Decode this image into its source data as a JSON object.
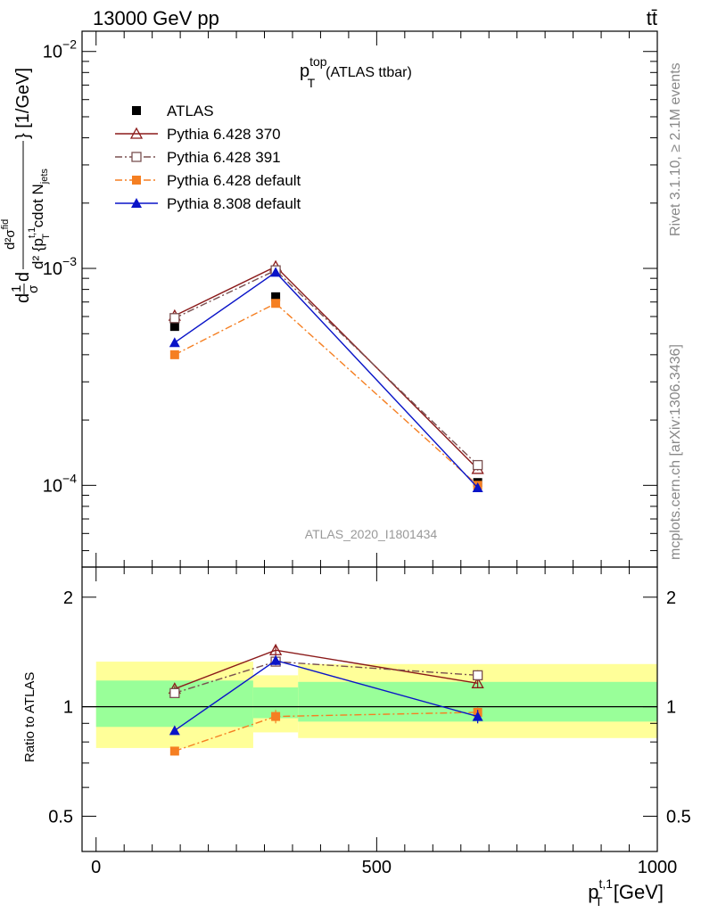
{
  "header": {
    "left": "13000 GeV pp",
    "right": "tt̄"
  },
  "side_labels": {
    "rivet": "Rivet 3.1.10, ≥ 2.1M events",
    "mcplots": "mcplots.cern.ch [arXiv:1306.3436]"
  },
  "chart_data": [
    {
      "type": "line",
      "panel": "main",
      "title_main": "p",
      "title_sup": "top",
      "title_sub": "T",
      "title_tail": "(ATLAS ttbar)",
      "watermark": "ATLAS_2020_I1801434",
      "ylabel": "d²σⁿᵈ ... d² {p_T^{t,1} cdot N_jets} [1/GeV]",
      "ylabel_parts": {
        "frac1_num": "1",
        "frac1_den": "σ",
        "d": "d",
        "frac2_num": "d²σ",
        "frac2_sup": "fid",
        "frac2_den_a": "d² {p",
        "frac2_den_sup": "t,1",
        "frac2_den_sub": "T",
        "frac2_den_b": " cdot N",
        "frac2_den_sub2": "jets",
        "unit": "} [1/GeV]"
      },
      "xlim": [
        -25,
        1000
      ],
      "ylim": [
        4.2e-05,
        0.0124
      ],
      "yscale": "log",
      "y_ticks": [
        {
          "value": 0.0001,
          "base": "10",
          "exp": "−4"
        },
        {
          "value": 0.001,
          "base": "10",
          "exp": "−3"
        },
        {
          "value": 0.01,
          "base": "10",
          "exp": "−2"
        }
      ],
      "legend_placement": "top-left",
      "series": [
        {
          "name": "ATLAS",
          "color": "#000000",
          "marker": "square-filled",
          "line": "none",
          "x": [
            140,
            320,
            680
          ],
          "y": [
            0.00054,
            0.00074,
            0.000103
          ],
          "yerr": [
            2e-05,
            2e-05,
            4e-06
          ]
        },
        {
          "name": "Pythia 6.428 370",
          "color": "#8b1a1a",
          "marker": "triangle-open",
          "line": "solid",
          "x": [
            140,
            320,
            680
          ],
          "y": [
            0.000605,
            0.00102,
            0.000119
          ],
          "yerr": [
            8e-06,
            1e-05,
            2e-06
          ]
        },
        {
          "name": "Pythia 6.428 391",
          "color": "#7a5050",
          "marker": "square-open",
          "line": "dashdot",
          "x": [
            140,
            320,
            680
          ],
          "y": [
            0.00059,
            0.00098,
            0.000124
          ],
          "yerr": [
            8e-06,
            1e-05,
            2e-06
          ]
        },
        {
          "name": "Pythia 6.428 default",
          "color": "#f57f22",
          "marker": "square-filled",
          "line": "dashdot",
          "x": [
            140,
            320,
            680
          ],
          "y": [
            0.0004,
            0.00069,
            0.0001
          ],
          "yerr": [
            7e-06,
            1e-05,
            2e-06
          ]
        },
        {
          "name": "Pythia 8.308 default",
          "color": "#0a14c8",
          "marker": "triangle-filled",
          "line": "solid",
          "x": [
            140,
            320,
            680
          ],
          "y": [
            0.000455,
            0.00096,
            9.75e-05
          ],
          "yerr": [
            7e-06,
            1e-05,
            2e-06
          ]
        }
      ]
    },
    {
      "type": "line",
      "panel": "ratio",
      "xlabel": "p_T^{t,1} [GeV]",
      "xlabel_parts": {
        "p": "p",
        "sup": "t,1",
        "sub": "T",
        "unit": " [GeV]"
      },
      "ylabel": "Ratio to ATLAS",
      "xlim": [
        -25,
        1000
      ],
      "ylim": [
        0.4,
        2.42
      ],
      "yscale": "log",
      "y_ticks": [
        {
          "value": 0.5,
          "label": "0.5"
        },
        {
          "value": 1,
          "label": "1"
        },
        {
          "value": 2,
          "label": "2"
        }
      ],
      "x_ticks": [
        {
          "value": 0,
          "label": "0"
        },
        {
          "value": 500,
          "label": "500"
        },
        {
          "value": 1000,
          "label": "1000"
        }
      ],
      "bands": [
        {
          "x0": 0,
          "x1": 280,
          "total": [
            0.77,
            1.33
          ],
          "stat": [
            0.88,
            1.18
          ]
        },
        {
          "x0": 280,
          "x1": 360,
          "total": [
            0.85,
            1.22
          ],
          "stat": [
            0.93,
            1.13
          ]
        },
        {
          "x0": 360,
          "x1": 1000,
          "total": [
            0.82,
            1.31
          ],
          "stat": [
            0.91,
            1.17
          ]
        }
      ],
      "band_colors": {
        "total": "#ffff99",
        "stat": "#99ff99"
      },
      "series": [
        {
          "name": "Pythia 6.428 370",
          "color": "#8b1a1a",
          "marker": "triangle-open",
          "line": "solid",
          "x": [
            140,
            320,
            680
          ],
          "y": [
            1.12,
            1.43,
            1.16
          ],
          "yerr": [
            0.02,
            0.05,
            0.03
          ]
        },
        {
          "name": "Pythia 6.428 391",
          "color": "#7a5050",
          "marker": "square-open",
          "line": "dashdot",
          "x": [
            140,
            320,
            680
          ],
          "y": [
            1.09,
            1.33,
            1.22
          ],
          "yerr": [
            0.02,
            0.04,
            0.04
          ]
        },
        {
          "name": "Pythia 6.428 default",
          "color": "#f57f22",
          "marker": "square-filled",
          "line": "dashdot",
          "x": [
            140,
            320,
            680
          ],
          "y": [
            0.755,
            0.94,
            0.965
          ],
          "yerr": [
            0.02,
            0.04,
            0.03
          ]
        },
        {
          "name": "Pythia 8.308 default",
          "color": "#0a14c8",
          "marker": "triangle-filled",
          "line": "solid",
          "x": [
            140,
            320,
            680
          ],
          "y": [
            0.86,
            1.34,
            0.94
          ],
          "yerr": [
            0.02,
            0.04,
            0.04
          ]
        }
      ]
    }
  ]
}
